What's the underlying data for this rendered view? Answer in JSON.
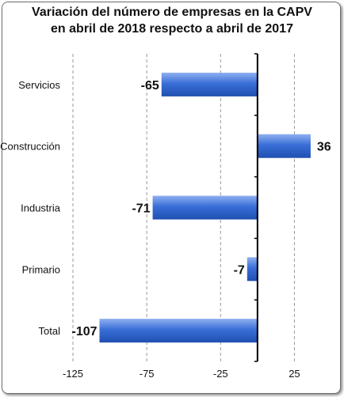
{
  "chart_data": {
    "type": "bar",
    "orientation": "horizontal",
    "title_lines": [
      "Variación del número de empresas en la CAPV",
      "en abril de 2018 respecto a abril de 2017"
    ],
    "categories": [
      "Servicios",
      "Construcción",
      "Industria",
      "Primario",
      "Total"
    ],
    "values": [
      -65,
      36,
      -71,
      -7,
      -107
    ],
    "value_labels": [
      "-65",
      "36",
      "-71",
      "-7",
      "-107"
    ],
    "xlim": [
      -125,
      50
    ],
    "xticks": [
      -125,
      -75,
      -25,
      25
    ],
    "xtick_labels": [
      "-125",
      "-75",
      "-25",
      "25"
    ],
    "grid": "vertical dashed",
    "legend": "none",
    "bar_color": "#3a6fd8",
    "bar_color_light": "#8fb0f0",
    "bar_color_dark": "#1f4fb0"
  }
}
